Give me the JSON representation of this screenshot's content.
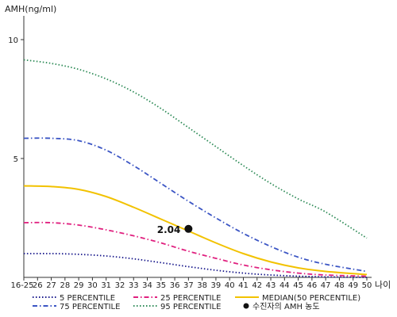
{
  "chart_data": {
    "type": "line",
    "ylabel": "AMH(ng/ml)",
    "xlabel": "나이",
    "ylim": [
      0,
      11
    ],
    "xlim": [
      25,
      50
    ],
    "yticks": [
      {
        "value": 10,
        "label": "10"
      },
      {
        "value": 5,
        "label": "5"
      }
    ],
    "xticks": [
      {
        "value": 25,
        "label": "16-25"
      },
      {
        "value": 26,
        "label": "26"
      },
      {
        "value": 27,
        "label": "27"
      },
      {
        "value": 28,
        "label": "28"
      },
      {
        "value": 29,
        "label": "29"
      },
      {
        "value": 30,
        "label": "30"
      },
      {
        "value": 31,
        "label": "31"
      },
      {
        "value": 32,
        "label": "32"
      },
      {
        "value": 33,
        "label": "33"
      },
      {
        "value": 34,
        "label": "34"
      },
      {
        "value": 35,
        "label": "35"
      },
      {
        "value": 36,
        "label": "36"
      },
      {
        "value": 37,
        "label": "37"
      },
      {
        "value": 38,
        "label": "38"
      },
      {
        "value": 39,
        "label": "39"
      },
      {
        "value": 40,
        "label": "40"
      },
      {
        "value": 41,
        "label": "41"
      },
      {
        "value": 42,
        "label": "42"
      },
      {
        "value": 43,
        "label": "43"
      },
      {
        "value": 44,
        "label": "44"
      },
      {
        "value": 45,
        "label": "45"
      },
      {
        "value": 46,
        "label": "46"
      },
      {
        "value": 47,
        "label": "47"
      },
      {
        "value": 48,
        "label": "48"
      },
      {
        "value": 49,
        "label": "49"
      },
      {
        "value": 50,
        "label": "50"
      }
    ],
    "grid": false,
    "legend_position": "bottom",
    "series": [
      {
        "name": "5 PERCENTILE",
        "color": "#1a1a8c",
        "style": "dotted",
        "x": [
          25,
          27,
          29,
          31,
          33,
          35,
          37,
          39,
          41,
          43,
          45,
          47,
          50
        ],
        "y": [
          1.0,
          1.0,
          0.97,
          0.9,
          0.78,
          0.62,
          0.45,
          0.3,
          0.18,
          0.1,
          0.05,
          0.02,
          0.0
        ]
      },
      {
        "name": "25 PERCENTILE",
        "color": "#e0207f",
        "style": "dashdot",
        "x": [
          25,
          27,
          29,
          31,
          33,
          35,
          37,
          39,
          41,
          43,
          45,
          47,
          50
        ],
        "y": [
          2.3,
          2.3,
          2.2,
          2.0,
          1.75,
          1.45,
          1.1,
          0.8,
          0.52,
          0.32,
          0.18,
          0.1,
          0.05
        ]
      },
      {
        "name": "MEDIAN(50 PERCENTILE)",
        "color": "#f2c200",
        "style": "solid",
        "x": [
          25,
          27,
          29,
          31,
          33,
          35,
          37,
          39,
          41,
          43,
          45,
          47,
          50
        ],
        "y": [
          3.85,
          3.82,
          3.7,
          3.4,
          2.95,
          2.45,
          1.95,
          1.45,
          1.0,
          0.65,
          0.4,
          0.25,
          0.12
        ]
      },
      {
        "name": "75 PERCENTILE",
        "color": "#3b55c4",
        "style": "dashdot",
        "x": [
          25,
          27,
          29,
          31,
          33,
          35,
          37,
          39,
          41,
          43,
          45,
          47,
          50
        ],
        "y": [
          5.85,
          5.85,
          5.75,
          5.35,
          4.7,
          3.95,
          3.2,
          2.5,
          1.85,
          1.3,
          0.85,
          0.55,
          0.25
        ]
      },
      {
        "name": "95 PERCENTILE",
        "color": "#2e8b57",
        "style": "dotted",
        "x": [
          25,
          27,
          29,
          31,
          33,
          35,
          37,
          39,
          41,
          43,
          45,
          47,
          50
        ],
        "y": [
          9.15,
          9.0,
          8.75,
          8.35,
          7.8,
          7.1,
          6.3,
          5.5,
          4.7,
          3.95,
          3.3,
          2.75,
          1.65
        ]
      }
    ],
    "marker": {
      "name": "수진자의 AMH 농도",
      "x": 37,
      "y": 2.04,
      "label": "2.04",
      "color": "#111111"
    }
  }
}
